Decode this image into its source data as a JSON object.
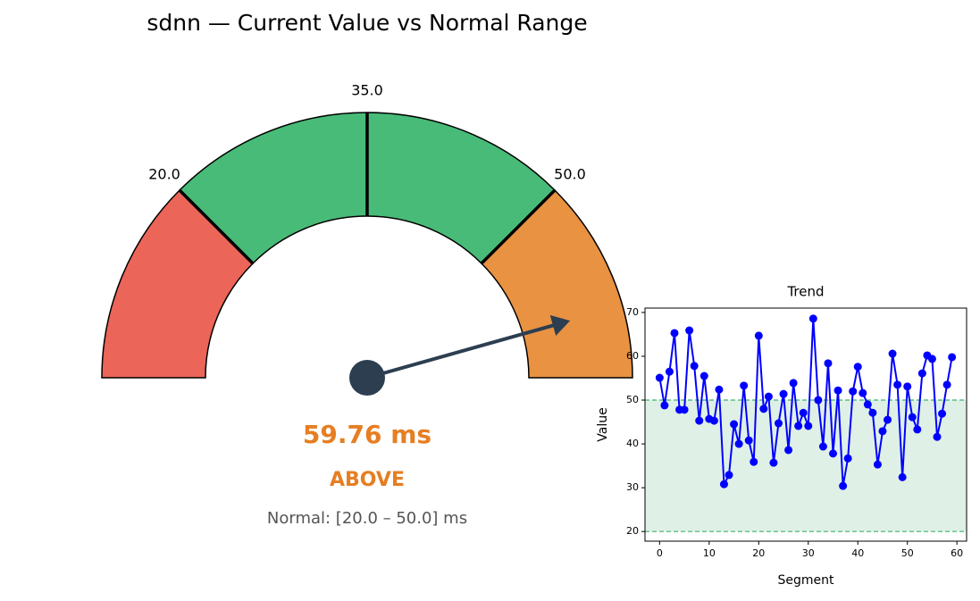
{
  "chart_data": [
    {
      "type": "gauge",
      "title": "sdnn — Current Value vs Normal Range",
      "range": [
        5,
        65
      ],
      "ticks": [
        {
          "value": 20,
          "label": "20.0"
        },
        {
          "value": 35,
          "label": "35.0"
        },
        {
          "value": 50,
          "label": "50.0"
        }
      ],
      "bands": [
        {
          "from": 5,
          "to": 20,
          "color": "#eb6559"
        },
        {
          "from": 20,
          "to": 50,
          "color": "#48bb78"
        },
        {
          "from": 50,
          "to": 65,
          "color": "#e89242"
        }
      ],
      "value": 59.76,
      "value_label": "59.76 ms",
      "status": "ABOVE",
      "status_color": "#e67e22",
      "needle_color": "#2c3e50",
      "note": "Normal: [20.0 – 50.0] ms"
    },
    {
      "type": "line",
      "title": "Trend",
      "xlabel": "Segment",
      "ylabel": "Value",
      "color": "#0000ff",
      "x": [
        0,
        1,
        2,
        3,
        4,
        5,
        6,
        7,
        8,
        9,
        10,
        11,
        12,
        13,
        14,
        15,
        16,
        17,
        18,
        19,
        20,
        21,
        22,
        23,
        24,
        25,
        26,
        27,
        28,
        29,
        30,
        31,
        32,
        33,
        34,
        35,
        36,
        37,
        38,
        39,
        40,
        41,
        42,
        43,
        44,
        45,
        46,
        47,
        48,
        49,
        50,
        51,
        52,
        53,
        54,
        55,
        56,
        57,
        58,
        59
      ],
      "values": [
        55.1,
        48.8,
        56.5,
        65.3,
        47.8,
        47.8,
        65.9,
        57.8,
        45.3,
        55.5,
        45.7,
        45.3,
        52.4,
        30.8,
        32.9,
        44.5,
        40.0,
        53.3,
        40.8,
        35.9,
        64.7,
        48.0,
        50.8,
        35.7,
        44.7,
        51.4,
        38.6,
        53.9,
        44.1,
        47.1,
        44.1,
        68.6,
        50.0,
        39.4,
        58.4,
        37.8,
        52.2,
        30.4,
        36.7,
        52.0,
        57.6,
        51.6,
        49.0,
        47.1,
        35.3,
        42.9,
        45.5,
        60.6,
        53.5,
        32.4,
        53.1,
        46.1,
        43.3,
        56.1,
        60.2,
        59.4,
        41.6,
        46.9,
        53.5,
        59.8
      ],
      "band": [
        20,
        50
      ],
      "band_color": "#dff0e6",
      "band_line_color": "#3cb371",
      "xlim": [
        -2.95,
        61.95
      ],
      "ylim": [
        17.8,
        71.0
      ],
      "xticks": [
        0,
        10,
        20,
        30,
        40,
        50,
        60
      ],
      "yticks": [
        20,
        30,
        40,
        50,
        60,
        70
      ]
    }
  ]
}
